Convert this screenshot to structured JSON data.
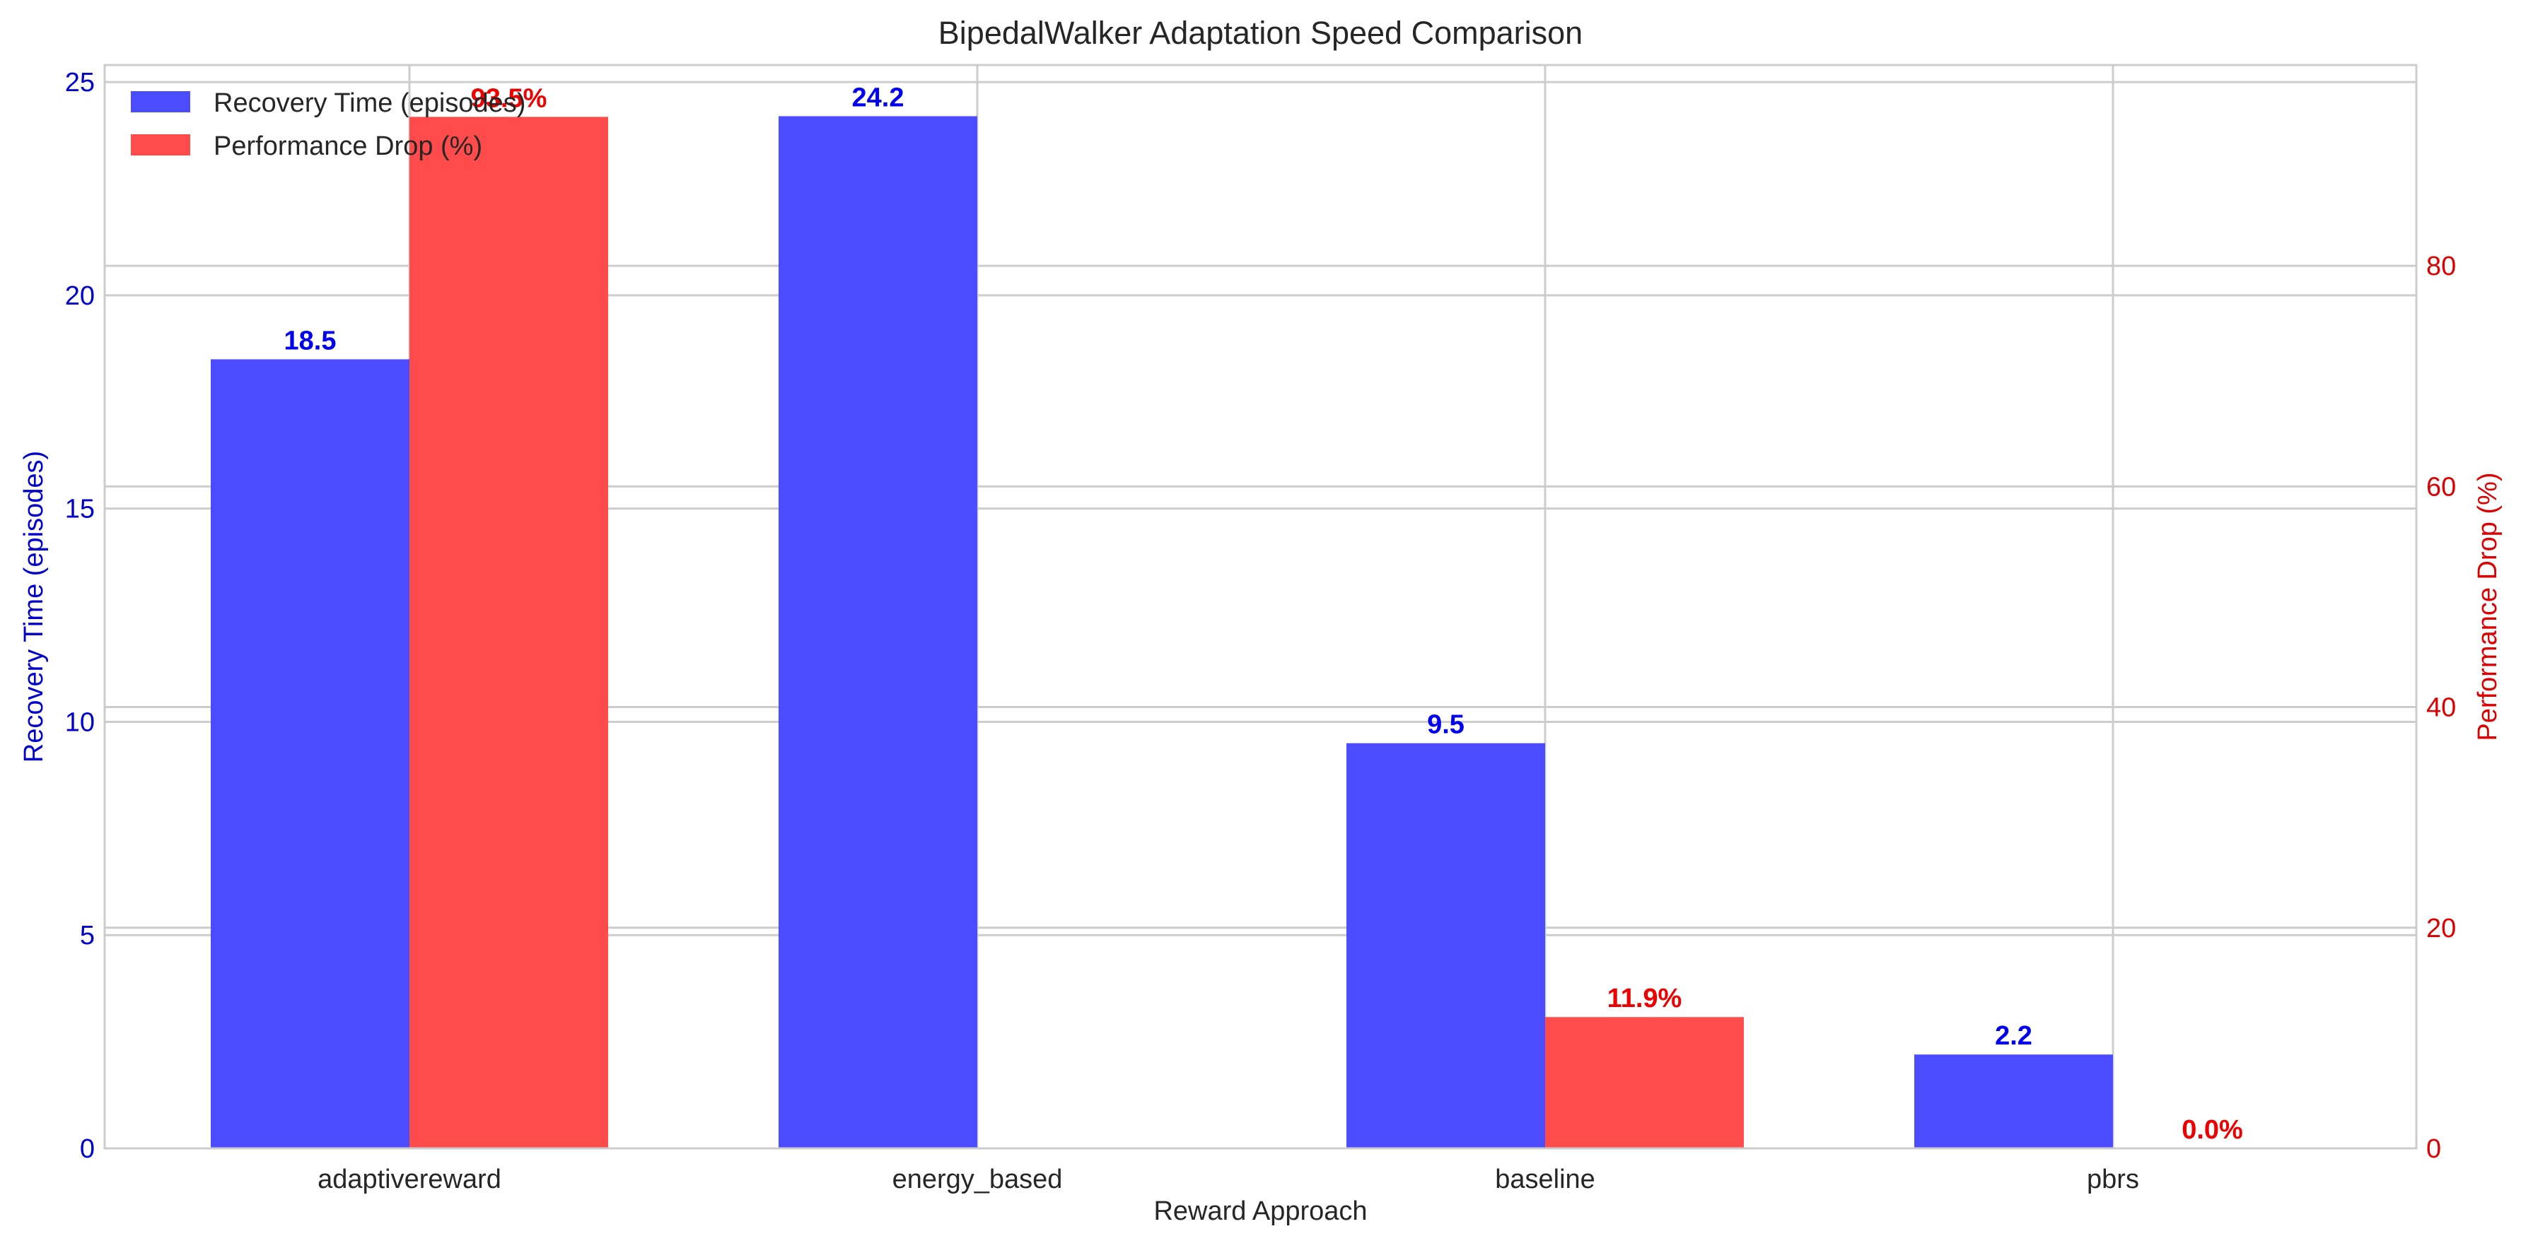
{
  "chart_data": {
    "type": "bar",
    "title": "BipedalWalker Adaptation Speed Comparison",
    "xlabel": "Reward Approach",
    "categories": [
      "adaptivereward",
      "energy_based",
      "baseline",
      "pbrs"
    ],
    "series": [
      {
        "name": "Recovery Time (episodes)",
        "axis": "left",
        "color": "#4b4bff",
        "values": [
          18.5,
          24.2,
          9.5,
          2.2
        ],
        "labels": [
          "18.5",
          "24.2",
          "9.5",
          "2.2"
        ],
        "label_color": "#0000ee"
      },
      {
        "name": "Performance Drop (%)",
        "axis": "right",
        "color": "#ff4b4b",
        "values": [
          93.5,
          null,
          11.9,
          0.0
        ],
        "labels": [
          "93.5%",
          "",
          "11.9%",
          "0.0%"
        ],
        "label_color": "#ee0000"
      }
    ],
    "y_left": {
      "label": "Recovery Time (episodes)",
      "color": "#0000cc",
      "ylim": [
        0,
        25.4
      ],
      "ticks": [
        0,
        5,
        10,
        15,
        20,
        25
      ]
    },
    "y_right": {
      "label": "Performance Drop (%)",
      "color": "#dd0000",
      "ylim": [
        0,
        98.2
      ],
      "ticks": [
        0,
        20,
        40,
        60,
        80
      ]
    },
    "grid": true,
    "legend_position": "top-left"
  }
}
